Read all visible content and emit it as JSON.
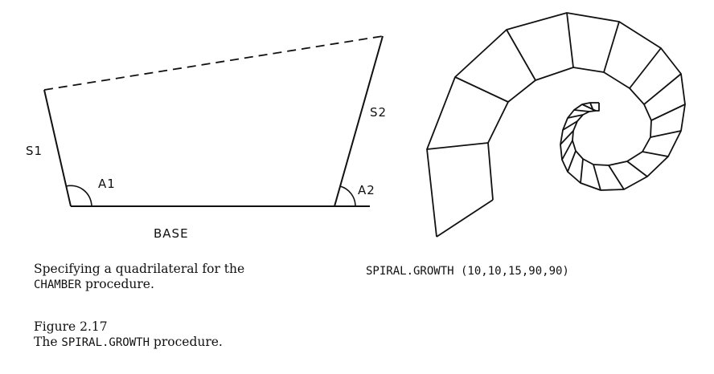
{
  "labels": {
    "s1": "S1",
    "s2": "S2",
    "a1": "A1",
    "a2": "A2",
    "base": "BASE"
  },
  "captions": {
    "left_line1": "Specifying a quadrilateral for the",
    "left_code": "CHAMBER",
    "left_rest": " procedure.",
    "right_code": "SPIRAL.GROWTH (10,10,15,90,90)",
    "figure_number": "Figure 2.17",
    "figure_title_pre": "The ",
    "figure_title_code": "SPIRAL.GROWTH",
    "figure_title_post": " procedure."
  }
}
